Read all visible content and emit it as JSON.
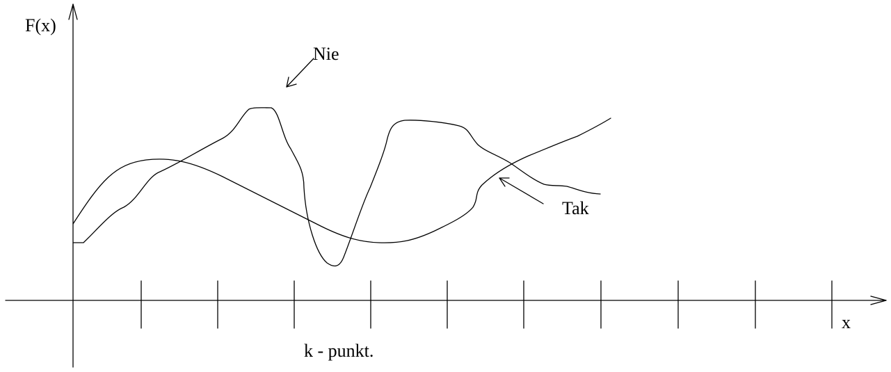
{
  "labels": {
    "y_axis": "F(x)",
    "x_axis": "x",
    "bad_curve": "Nie",
    "good_curve": "Tak",
    "ticks_caption": "k - punkt."
  },
  "colors": {
    "ink": "#000000",
    "background": "#ffffff"
  }
}
